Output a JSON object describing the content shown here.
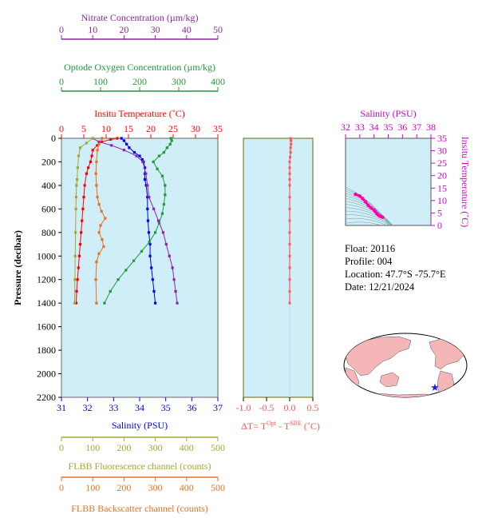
{
  "info": {
    "float": "Float:  20116",
    "profile": "Profile:  004",
    "location": "Location:  47.7°S  -75.7°E",
    "date": "Date:  12/21/2024"
  },
  "chart_data": [
    {
      "type": "line",
      "panel": "main profile",
      "ylabel": "Pressure (decibar)",
      "ylim": [
        2200,
        0
      ],
      "yticks": [
        0,
        200,
        400,
        600,
        800,
        1000,
        1200,
        1400,
        1600,
        1800,
        2000,
        2200
      ],
      "background": "#cfeef7",
      "axes": [
        {
          "key": "nitrate",
          "label": "Nitrate Concentration (µm/kg)",
          "ticks": [
            0,
            10,
            20,
            30,
            40,
            50
          ],
          "range": [
            0,
            50
          ],
          "color": "#8e24aa"
        },
        {
          "key": "oxygen",
          "label": "Optode Oxygen Concentration (µm/kg)",
          "ticks": [
            0,
            100,
            200,
            300,
            400
          ],
          "range": [
            0,
            400
          ],
          "color": "#1e9a3a"
        },
        {
          "key": "temperature",
          "label": "Insitu Temperature (˚C)",
          "ticks": [
            0,
            5,
            10,
            15,
            20,
            25,
            30,
            35
          ],
          "range": [
            0,
            35
          ],
          "color": "#ff0000"
        },
        {
          "key": "salinity",
          "label": "Salinity (PSU)",
          "ticks": [
            31,
            32,
            33,
            34,
            35,
            36,
            37
          ],
          "range": [
            31,
            37
          ],
          "color": "#0000ff"
        },
        {
          "key": "fluorescence",
          "label": "FLBB Fluorescence channel (counts)",
          "ticks": [
            0,
            100,
            200,
            300,
            400,
            500
          ],
          "range": [
            0,
            500
          ],
          "color": "#a6a632"
        },
        {
          "key": "backscatter",
          "label": "FLBB Backscatter channel (counts)",
          "ticks": [
            0,
            100,
            200,
            300,
            400,
            500
          ],
          "range": [
            0,
            500
          ],
          "color": "#e87020"
        }
      ],
      "series": [
        {
          "axis": "temperature",
          "color": "#ff0000",
          "points": [
            [
              12.5,
              0
            ],
            [
              11,
              10
            ],
            [
              9,
              30
            ],
            [
              8,
              60
            ],
            [
              7,
              100
            ],
            [
              6.8,
              150
            ],
            [
              6.5,
              200
            ],
            [
              6,
              250
            ],
            [
              5.6,
              300
            ],
            [
              5.2,
              400
            ],
            [
              5,
              500
            ],
            [
              4.8,
              600
            ],
            [
              4.6,
              700
            ],
            [
              4.4,
              800
            ],
            [
              4.2,
              900
            ],
            [
              4,
              1000
            ],
            [
              3.8,
              1100
            ],
            [
              3.6,
              1200
            ],
            [
              3.4,
              1300
            ],
            [
              3.3,
              1400
            ]
          ]
        },
        {
          "axis": "salinity",
          "color": "#0000ff",
          "points": [
            [
              33.3,
              0
            ],
            [
              33.4,
              20
            ],
            [
              33.5,
              50
            ],
            [
              33.6,
              80
            ],
            [
              33.8,
              120
            ],
            [
              34.0,
              150
            ],
            [
              34.1,
              180
            ],
            [
              34.15,
              200
            ],
            [
              34.2,
              250
            ],
            [
              34.2,
              300
            ],
            [
              34.2,
              350
            ],
            [
              34.25,
              400
            ],
            [
              34.3,
              500
            ],
            [
              34.3,
              600
            ],
            [
              34.32,
              700
            ],
            [
              34.35,
              800
            ],
            [
              34.4,
              900
            ],
            [
              34.4,
              1000
            ],
            [
              34.45,
              1100
            ],
            [
              34.5,
              1200
            ],
            [
              34.55,
              1300
            ],
            [
              34.6,
              1400
            ]
          ]
        },
        {
          "axis": "oxygen",
          "color": "#1e9a3a",
          "points": [
            [
              280,
              0
            ],
            [
              282,
              20
            ],
            [
              278,
              50
            ],
            [
              270,
              80
            ],
            [
              262,
              120
            ],
            [
              250,
              150
            ],
            [
              235,
              200
            ],
            [
              245,
              260
            ],
            [
              258,
              320
            ],
            [
              265,
              400
            ],
            [
              265,
              480
            ],
            [
              262,
              560
            ],
            [
              258,
              640
            ],
            [
              250,
              720
            ],
            [
              240,
              800
            ],
            [
              225,
              880
            ],
            [
              205,
              960
            ],
            [
              185,
              1040
            ],
            [
              165,
              1120
            ],
            [
              145,
              1200
            ],
            [
              125,
              1300
            ],
            [
              110,
              1400
            ]
          ]
        },
        {
          "axis": "nitrate",
          "color": "#8e24aa",
          "points": [
            [
              10,
              0
            ],
            [
              12,
              30
            ],
            [
              16,
              60
            ],
            [
              20,
              100
            ],
            [
              24,
              150
            ],
            [
              26,
              200
            ],
            [
              27,
              300
            ],
            [
              27.5,
              400
            ],
            [
              28,
              500
            ],
            [
              29.5,
              600
            ],
            [
              31,
              700
            ],
            [
              32.5,
              800
            ],
            [
              33.5,
              900
            ],
            [
              34.5,
              1000
            ],
            [
              35.5,
              1100
            ],
            [
              36,
              1200
            ],
            [
              36.5,
              1300
            ],
            [
              37,
              1400
            ]
          ]
        },
        {
          "axis": "fluorescence",
          "color": "#a6a632",
          "points": [
            [
              100,
              0
            ],
            [
              80,
              40
            ],
            [
              60,
              80
            ],
            [
              55,
              150
            ],
            [
              52,
              250
            ],
            [
              50,
              350
            ],
            [
              48,
              400
            ],
            [
              47,
              500
            ],
            [
              46,
              600
            ],
            [
              45,
              800
            ],
            [
              44,
              1000
            ],
            [
              43,
              1200
            ],
            [
              42,
              1400
            ]
          ]
        },
        {
          "axis": "backscatter",
          "color": "#e87020",
          "points": [
            [
              130,
              0
            ],
            [
              120,
              50
            ],
            [
              115,
              100
            ],
            [
              112,
              200
            ],
            [
              110,
              300
            ],
            [
              112,
              400
            ],
            [
              115,
              500
            ],
            [
              120,
              560
            ],
            [
              128,
              620
            ],
            [
              140,
              680
            ],
            [
              125,
              740
            ],
            [
              120,
              800
            ],
            [
              130,
              860
            ],
            [
              135,
              920
            ],
            [
              120,
              980
            ],
            [
              112,
              1050
            ],
            [
              110,
              1200
            ],
            [
              112,
              1400
            ]
          ]
        }
      ]
    },
    {
      "type": "line",
      "panel": "temperature difference",
      "xlabel": "ΔT= T",
      "xlabel_sup1": "Opt",
      "xlabel_mid": " - T",
      "xlabel_sup2": "SBE",
      "xlabel_end": " (˚C)",
      "xlim": [
        -1.0,
        0.5
      ],
      "xticks": [
        "-1.0",
        "-0.5",
        "0.0",
        "0.5"
      ],
      "ylim": [
        2200,
        0
      ],
      "color": "#ff5555",
      "points": [
        [
          0.02,
          0
        ],
        [
          0.03,
          20
        ],
        [
          0.03,
          50
        ],
        [
          0.02,
          80
        ],
        [
          0.02,
          120
        ],
        [
          0.01,
          160
        ],
        [
          0.0,
          200
        ],
        [
          0.0,
          250
        ],
        [
          0.0,
          300
        ],
        [
          0.0,
          350
        ],
        [
          0.0,
          400
        ],
        [
          0.0,
          500
        ],
        [
          0.0,
          600
        ],
        [
          0.0,
          700
        ],
        [
          0.0,
          800
        ],
        [
          0.0,
          900
        ],
        [
          0.0,
          1000
        ],
        [
          0.0,
          1100
        ],
        [
          0.0,
          1200
        ],
        [
          0.0,
          1300
        ],
        [
          0.0,
          1400
        ]
      ]
    },
    {
      "type": "scatter",
      "panel": "T-S diagram",
      "xlabel": "Salinity (PSU)",
      "ylabel": "Insitu Temperature (˚C)",
      "xlim": [
        32,
        38
      ],
      "ylim": [
        0,
        35
      ],
      "xticks": [
        32,
        33,
        34,
        35,
        36,
        37,
        38
      ],
      "yticks": [
        0,
        5,
        10,
        15,
        20,
        25,
        30,
        35
      ],
      "color": "#ff00aa",
      "points": [
        [
          32.7,
          12.5
        ],
        [
          33.0,
          11.8
        ],
        [
          33.2,
          10.8
        ],
        [
          33.4,
          9.5
        ],
        [
          33.6,
          8.0
        ],
        [
          33.8,
          7.0
        ],
        [
          34.0,
          6.2
        ],
        [
          34.1,
          5.5
        ],
        [
          34.2,
          4.8
        ],
        [
          34.3,
          4.2
        ],
        [
          34.4,
          3.8
        ],
        [
          34.5,
          3.5
        ],
        [
          34.6,
          3.3
        ]
      ]
    }
  ],
  "map": {
    "land_color": "#f4b6b6",
    "ocean_color": "#ffffff",
    "marker_icon": "float-location-star-icon",
    "marker_color": "#1a1aff"
  }
}
